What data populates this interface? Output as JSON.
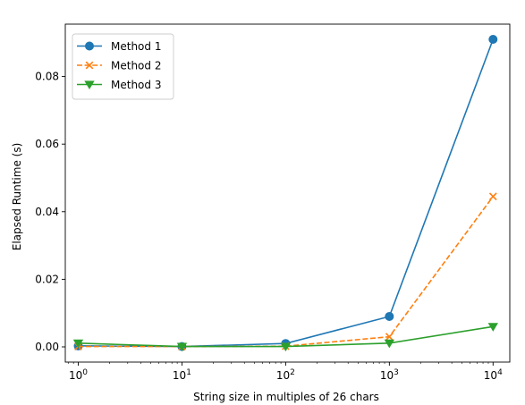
{
  "chart_data": {
    "type": "line",
    "xlabel": "String size in multiples of 26 chars",
    "ylabel": "Elapsed Runtime (s)",
    "xscale": "log",
    "xlim": [
      0.75,
      14500
    ],
    "ylim": [
      -0.0045,
      0.0955
    ],
    "x_ticks": [
      1,
      10,
      100,
      1000,
      10000
    ],
    "x_tick_labels": [
      {
        "base": "10",
        "exp": "0"
      },
      {
        "base": "10",
        "exp": "1"
      },
      {
        "base": "10",
        "exp": "2"
      },
      {
        "base": "10",
        "exp": "3"
      },
      {
        "base": "10",
        "exp": "4"
      }
    ],
    "y_ticks": [
      0.0,
      0.02,
      0.04,
      0.06,
      0.08
    ],
    "y_tick_labels": [
      "0.00",
      "0.02",
      "0.04",
      "0.06",
      "0.08"
    ],
    "x": [
      1,
      10,
      100,
      1000,
      10000
    ],
    "series": [
      {
        "name": "Method 1",
        "values": [
          0.0003,
          0.0001,
          0.001,
          0.009,
          0.091
        ],
        "color": "#1f77b4",
        "marker": "circle",
        "dash": "solid"
      },
      {
        "name": "Method 2",
        "values": [
          0.0001,
          0.0001,
          0.0002,
          0.003,
          0.0445
        ],
        "color": "#ff7f0e",
        "marker": "x",
        "dash": "dashed"
      },
      {
        "name": "Method 3",
        "values": [
          0.0011,
          0.0001,
          0.0001,
          0.0011,
          0.006
        ],
        "color": "#2ca02c",
        "marker": "triangle-down",
        "dash": "solid"
      }
    ],
    "legend": {
      "position": "top-left"
    },
    "grid": false
  }
}
